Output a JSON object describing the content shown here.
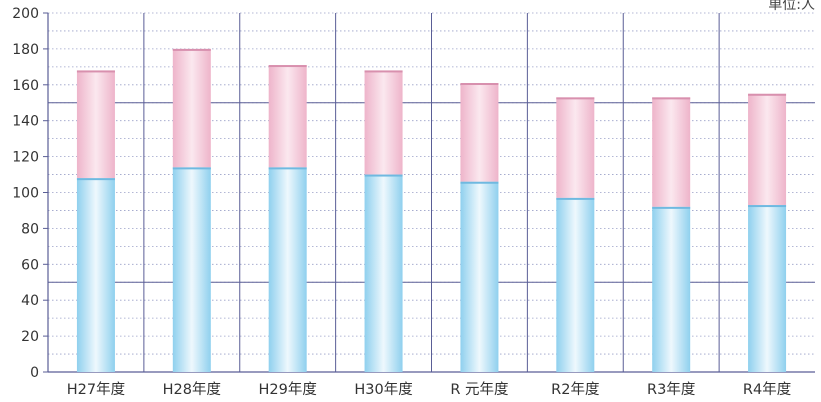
{
  "unit_label": "単位:人",
  "chart_data": {
    "type": "bar",
    "stacked": true,
    "categories": [
      "H27年度",
      "H28年度",
      "H29年度",
      "H30年度",
      "R 元年度",
      "R2年度",
      "R3年度",
      "R4年度"
    ],
    "series": [
      {
        "values": [
          108,
          114,
          114,
          110,
          106,
          97,
          92,
          93
        ]
      },
      {
        "values": [
          60,
          66,
          57,
          58,
          55,
          56,
          61,
          62
        ]
      }
    ],
    "ylim": [
      0,
      200
    ],
    "yticks": [
      0,
      20,
      40,
      60,
      80,
      100,
      120,
      140,
      160,
      180,
      200
    ],
    "grid": true,
    "colors": {
      "lower": "#8fd0ee",
      "upper": "#eeb4ca",
      "axis": "#5a5e96",
      "grid": "#9aa0c8"
    }
  }
}
